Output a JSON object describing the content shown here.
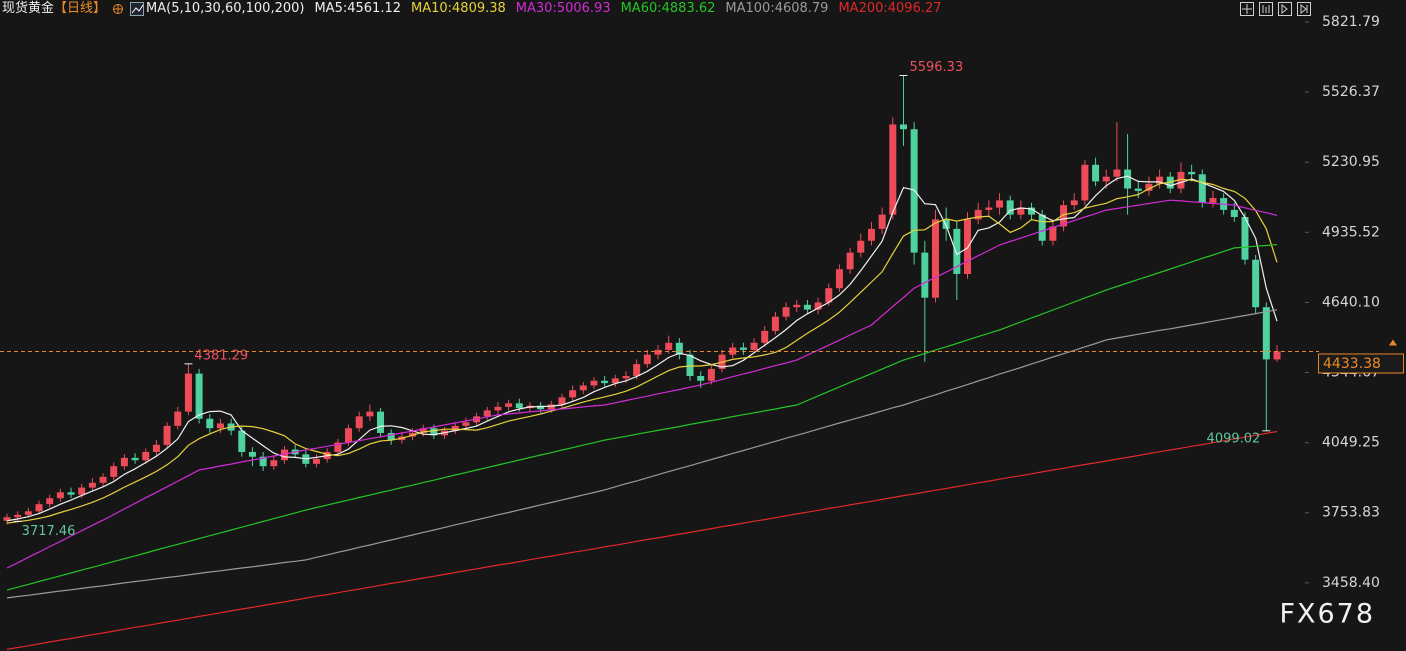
{
  "chart_data": {
    "type": "candlestick",
    "title": "现货黄金",
    "period": "【日线】",
    "indicator": "MA(5,10,30,60,100,200)",
    "watermark": "FX678",
    "up_color": "#ee4b58",
    "down_color": "#4fd1a0",
    "grid": false,
    "ylim": [
      3171.2,
      5914.5
    ],
    "yticks": [
      5821.79,
      5526.37,
      5230.95,
      4935.52,
      {
        "value": 4640.1,
        "label": "4640.10"
      },
      4344.67,
      4049.25,
      3753.83,
      {
        "value": 3458.4,
        "label": "3458.40"
      }
    ],
    "open": [
      3720,
      3735,
      3745,
      3760,
      3790,
      3815,
      3840,
      3830,
      3860,
      3880,
      3905,
      3950,
      3985,
      3975,
      4010,
      4040,
      4120,
      4180,
      4340,
      4150,
      4110,
      4130,
      4100,
      4010,
      3990,
      3950,
      3975,
      4020,
      4000,
      3960,
      3980,
      4010,
      4050,
      4110,
      4160,
      4180,
      4090,
      4060,
      4075,
      4090,
      4110,
      4080,
      4100,
      4120,
      4135,
      4160,
      4185,
      4200,
      4215,
      4195,
      4205,
      4190,
      4210,
      4240,
      4270,
      4290,
      4310,
      4300,
      4320,
      4330,
      4380,
      4420,
      4440,
      4470,
      4420,
      4330,
      4310,
      4360,
      4420,
      4450,
      4440,
      4470,
      4520,
      4580,
      4620,
      4630,
      4610,
      4640,
      4700,
      4780,
      4850,
      4900,
      4950,
      5010,
      5390,
      5370,
      4850,
      4660,
      4990,
      4950,
      4760,
      4990,
      5030,
      5040,
      5070,
      5010,
      5040,
      5010,
      4900,
      4960,
      5050,
      5070,
      5220,
      5150,
      5170,
      5200,
      5120,
      5110,
      5140,
      5170,
      5120,
      5190,
      5180,
      5060,
      5080,
      5030,
      5000,
      4820,
      4620,
      4400
    ],
    "high": [
      3750,
      3760,
      3775,
      3805,
      3830,
      3855,
      3860,
      3875,
      3900,
      3920,
      3965,
      4000,
      4005,
      4025,
      4060,
      4135,
      4200,
      4381.29,
      4360,
      4170,
      4150,
      4150,
      4115,
      4030,
      4010,
      3995,
      4035,
      4040,
      4015,
      4000,
      4025,
      4065,
      4125,
      4180,
      4210,
      4195,
      4105,
      4095,
      4110,
      4125,
      4125,
      4115,
      4135,
      4155,
      4175,
      4200,
      4220,
      4230,
      4235,
      4220,
      4220,
      4225,
      4255,
      4290,
      4305,
      4325,
      4330,
      4335,
      4350,
      4400,
      4440,
      4460,
      4500,
      4490,
      4440,
      4350,
      4380,
      4440,
      4470,
      4470,
      4490,
      4540,
      4600,
      4640,
      4650,
      4650,
      4660,
      4720,
      4800,
      4870,
      4930,
      4980,
      5040,
      5420,
      5596.33,
      5400,
      4900,
      5030,
      5040,
      4980,
      5020,
      5060,
      5070,
      5100,
      5090,
      5070,
      5060,
      5030,
      4990,
      5070,
      5100,
      5240,
      5250,
      5200,
      5400,
      5350,
      5150,
      5170,
      5200,
      5190,
      5230,
      5220,
      5200,
      5110,
      5100,
      5060,
      5020,
      4840,
      4640,
      4460
    ],
    "low": [
      3705,
      3717.46,
      3735,
      3750,
      3775,
      3800,
      3815,
      3815,
      3845,
      3865,
      3890,
      3935,
      3960,
      3960,
      3995,
      4025,
      4105,
      4165,
      4130,
      4090,
      4090,
      4080,
      3990,
      3950,
      3930,
      3935,
      3960,
      3985,
      3945,
      3945,
      3965,
      3995,
      4035,
      4095,
      4140,
      4070,
      4040,
      4045,
      4060,
      4075,
      4065,
      4065,
      4085,
      4105,
      4120,
      4145,
      4170,
      4185,
      4180,
      4180,
      4175,
      4175,
      4195,
      4225,
      4255,
      4275,
      4285,
      4285,
      4300,
      4315,
      4365,
      4400,
      4425,
      4400,
      4310,
      4280,
      4295,
      4345,
      4405,
      4420,
      4425,
      4455,
      4505,
      4565,
      4600,
      4595,
      4590,
      4625,
      4685,
      4760,
      4830,
      4880,
      4930,
      4990,
      5300,
      4800,
      4390,
      4640,
      4900,
      4650,
      4740,
      4970,
      5000,
      5010,
      4990,
      4990,
      4990,
      4880,
      4880,
      4940,
      5030,
      5050,
      5130,
      5120,
      5150,
      5010,
      5080,
      5090,
      5120,
      5100,
      5100,
      5150,
      5040,
      5040,
      5010,
      4980,
      4800,
      4590,
      4099.02,
      4390
    ],
    "close": [
      3735,
      3745,
      3760,
      3790,
      3815,
      3840,
      3830,
      3860,
      3880,
      3905,
      3950,
      3985,
      3975,
      4010,
      4040,
      4120,
      4180,
      4340,
      4150,
      4110,
      4130,
      4100,
      4010,
      3990,
      3950,
      3975,
      4020,
      4000,
      3960,
      3980,
      4010,
      4050,
      4110,
      4160,
      4180,
      4090,
      4060,
      4075,
      4090,
      4110,
      4080,
      4100,
      4120,
      4135,
      4160,
      4185,
      4200,
      4215,
      4195,
      4205,
      4190,
      4210,
      4240,
      4270,
      4290,
      4310,
      4300,
      4320,
      4330,
      4380,
      4420,
      4440,
      4470,
      4420,
      4330,
      4310,
      4360,
      4420,
      4450,
      4440,
      4470,
      4520,
      4580,
      4620,
      4630,
      4610,
      4640,
      4700,
      4780,
      4850,
      4900,
      4950,
      5010,
      5390,
      5370,
      4850,
      4660,
      4990,
      4950,
      4760,
      4990,
      5030,
      5040,
      5070,
      5010,
      5040,
      5010,
      4900,
      4960,
      5050,
      5070,
      5220,
      5150,
      5170,
      5200,
      5120,
      5110,
      5140,
      5170,
      5120,
      5190,
      5180,
      5060,
      5080,
      5030,
      5000,
      4820,
      4620,
      4400,
      4433.38
    ],
    "series": [
      {
        "name": "MA5:4561.12",
        "color": "#f0f0f0",
        "values": [
          3720,
          3728,
          3737,
          3750,
          3769,
          3790,
          3807,
          3827,
          3845,
          3863,
          3885,
          3916,
          3939,
          3965,
          3992,
          4026,
          4065,
          4138,
          4166,
          4180,
          4182,
          4166,
          4100,
          4068,
          4036,
          4005,
          3989,
          3987,
          3981,
          3987,
          3994,
          4000,
          4022,
          4062,
          4102,
          4118,
          4120,
          4113,
          4099,
          4085,
          4083,
          4091,
          4100,
          4109,
          4119,
          4140,
          4160,
          4179,
          4191,
          4200,
          4201,
          4203,
          4208,
          4223,
          4240,
          4264,
          4282,
          4298,
          4310,
          4328,
          4350,
          4378,
          4408,
          4426,
          4416,
          4394,
          4378,
          4368,
          4374,
          4396,
          4428,
          4460,
          4492,
          4526,
          4564,
          4592,
          4616,
          4640,
          4672,
          4716,
          4774,
          4836,
          4898,
          5020,
          5124,
          5114,
          5056,
          5052,
          4964,
          4842,
          4870,
          4944,
          4954,
          4978,
          5028,
          5038,
          5034,
          5006,
          4984,
          4992,
          4998,
          5040,
          5090,
          5132,
          5162,
          5172,
          5150,
          5148,
          5148,
          5132,
          5146,
          5160,
          5144,
          5126,
          5108,
          5070,
          4998,
          4910,
          4700,
          4561.12
        ]
      },
      {
        "name": "MA10:4809.38",
        "color": "#e6d23a",
        "values": [
          3710,
          3716,
          3722,
          3730,
          3740,
          3755,
          3768,
          3782,
          3798,
          3816,
          3838,
          3862,
          3883,
          3905,
          3928,
          3956,
          3990,
          4038,
          4066,
          4086,
          4104,
          4116,
          4119,
          4117,
          4108,
          4094,
          4078,
          4044,
          4024,
          4012,
          4000,
          3994,
          4004,
          4022,
          4044,
          4056,
          4060,
          4068,
          4080,
          4094,
          4100,
          4106,
          4106,
          4104,
          4102,
          4112,
          4126,
          4140,
          4150,
          4160,
          4170,
          4182,
          4194,
          4207,
          4220,
          4232,
          4242,
          4253,
          4266,
          4284,
          4307,
          4330,
          4353,
          4368,
          4372,
          4372,
          4378,
          4388,
          4400,
          4406,
          4411,
          4419,
          4430,
          4450,
          4480,
          4510,
          4538,
          4566,
          4599,
          4640,
          4683,
          4726,
          4769,
          4846,
          4920,
          4944,
          4946,
          4975,
          4992,
          4983,
          4992,
          5000,
          5003,
          4971,
          4935,
          4954,
          4989,
          4980,
          4981,
          5010,
          5018,
          5037,
          5048,
          5058,
          5077,
          5085,
          5095,
          5119,
          5140,
          5147,
          5159,
          5155,
          5146,
          5137,
          5120,
          5108,
          5079,
          5027,
          4950,
          4809.38
        ]
      },
      {
        "name": "MA30:5006.93",
        "color": "#d22bd6",
        "values": [
          3521,
          3543,
          3566,
          3588,
          3611,
          3633,
          3656,
          3678,
          3701,
          3723,
          3746,
          3770,
          3793,
          3817,
          3840,
          3863,
          3887,
          3910,
          3934,
          3942,
          3951,
          3959,
          3968,
          3976,
          3984,
          3993,
          4001,
          4010,
          4018,
          4026,
          4034,
          4042,
          4050,
          4058,
          4066,
          4074,
          4082,
          4090,
          4098,
          4107,
          4115,
          4124,
          4132,
          4141,
          4149,
          4158,
          4166,
          4170,
          4174,
          4179,
          4183,
          4187,
          4191,
          4195,
          4200,
          4204,
          4208,
          4217,
          4227,
          4236,
          4245,
          4255,
          4264,
          4273,
          4283,
          4292,
          4304,
          4315,
          4327,
          4339,
          4350,
          4362,
          4374,
          4385,
          4397,
          4418,
          4439,
          4460,
          4481,
          4503,
          4524,
          4545,
          4584,
          4623,
          4661,
          4700,
          4723,
          4746,
          4768,
          4791,
          4814,
          4837,
          4859,
          4882,
          4897,
          4911,
          4926,
          4941,
          4956,
          4970,
          4985,
          5000,
          5014,
          5029,
          5036,
          5043,
          5050,
          5057,
          5064,
          5071,
          5068,
          5064,
          5061,
          5057,
          5054,
          5050,
          5039,
          5028,
          5018,
          5006.93
        ]
      },
      {
        "name": "MA60:4883.62",
        "color": "#25c425",
        "values": [
          3428,
          3440,
          3452,
          3464,
          3476,
          3488,
          3500,
          3512,
          3524,
          3536,
          3548,
          3560,
          3572,
          3584,
          3597,
          3609,
          3621,
          3633,
          3645,
          3657,
          3669,
          3681,
          3693,
          3705,
          3717,
          3729,
          3741,
          3753,
          3765,
          3776,
          3786,
          3797,
          3807,
          3818,
          3828,
          3839,
          3849,
          3860,
          3870,
          3881,
          3891,
          3902,
          3913,
          3923,
          3934,
          3944,
          3955,
          3965,
          3976,
          3986,
          3997,
          4007,
          4018,
          4028,
          4039,
          4049,
          4060,
          4068,
          4076,
          4085,
          4093,
          4101,
          4109,
          4117,
          4126,
          4134,
          4142,
          4150,
          4159,
          4167,
          4175,
          4183,
          4191,
          4200,
          4208,
          4227,
          4246,
          4265,
          4284,
          4303,
          4321,
          4340,
          4359,
          4378,
          4397,
          4411,
          4425,
          4439,
          4453,
          4467,
          4482,
          4496,
          4510,
          4524,
          4541,
          4558,
          4575,
          4591,
          4608,
          4625,
          4642,
          4659,
          4675,
          4692,
          4707,
          4722,
          4737,
          4751,
          4766,
          4781,
          4796,
          4811,
          4826,
          4840,
          4855,
          4870,
          4873,
          4877,
          4880,
          4883.62
        ]
      },
      {
        "name": "MA100:4608.79",
        "color": "#9a9a9a",
        "values": [
          3395,
          3401,
          3406,
          3412,
          3418,
          3424,
          3429,
          3435,
          3441,
          3446,
          3452,
          3458,
          3464,
          3469,
          3475,
          3481,
          3486,
          3492,
          3498,
          3504,
          3509,
          3515,
          3521,
          3526,
          3532,
          3538,
          3544,
          3549,
          3555,
          3566,
          3576,
          3587,
          3597,
          3608,
          3618,
          3629,
          3639,
          3650,
          3660,
          3671,
          3681,
          3692,
          3703,
          3713,
          3724,
          3734,
          3745,
          3755,
          3766,
          3776,
          3787,
          3797,
          3808,
          3818,
          3829,
          3839,
          3850,
          3863,
          3876,
          3888,
          3901,
          3914,
          3927,
          3940,
          3952,
          3965,
          3978,
          3991,
          4004,
          4016,
          4029,
          4042,
          4055,
          4068,
          4080,
          4093,
          4106,
          4119,
          4132,
          4144,
          4157,
          4170,
          4183,
          4196,
          4208,
          4222,
          4237,
          4251,
          4266,
          4280,
          4294,
          4309,
          4323,
          4338,
          4352,
          4366,
          4381,
          4395,
          4410,
          4424,
          4438,
          4453,
          4467,
          4482,
          4490,
          4498,
          4506,
          4514,
          4522,
          4529,
          4537,
          4545,
          4553,
          4561,
          4569,
          4577,
          4585,
          4593,
          4601,
          4608.79
        ]
      },
      {
        "name": "MA200:4096.27",
        "color": "#e02828",
        "values": [
          3178,
          3186,
          3193,
          3201,
          3209,
          3217,
          3224,
          3232,
          3240,
          3247,
          3255,
          3263,
          3271,
          3278,
          3286,
          3294,
          3301,
          3309,
          3317,
          3324,
          3332,
          3340,
          3348,
          3355,
          3363,
          3371,
          3378,
          3386,
          3394,
          3402,
          3409,
          3417,
          3425,
          3432,
          3440,
          3448,
          3456,
          3463,
          3471,
          3479,
          3486,
          3494,
          3502,
          3510,
          3517,
          3525,
          3533,
          3540,
          3548,
          3556,
          3564,
          3571,
          3579,
          3587,
          3594,
          3602,
          3610,
          3617,
          3625,
          3633,
          3641,
          3648,
          3656,
          3664,
          3671,
          3679,
          3687,
          3695,
          3702,
          3710,
          3718,
          3725,
          3733,
          3741,
          3749,
          3756,
          3764,
          3772,
          3779,
          3787,
          3795,
          3802,
          3810,
          3818,
          3826,
          3833,
          3841,
          3849,
          3856,
          3864,
          3872,
          3880,
          3887,
          3895,
          3903,
          3910,
          3918,
          3926,
          3934,
          3941,
          3949,
          3957,
          3964,
          3972,
          3980,
          3987,
          3995,
          4003,
          4011,
          4018,
          4026,
          4034,
          4041,
          4049,
          4057,
          4065,
          4072,
          4080,
          4088,
          4096.27
        ]
      }
    ]
  }
}
